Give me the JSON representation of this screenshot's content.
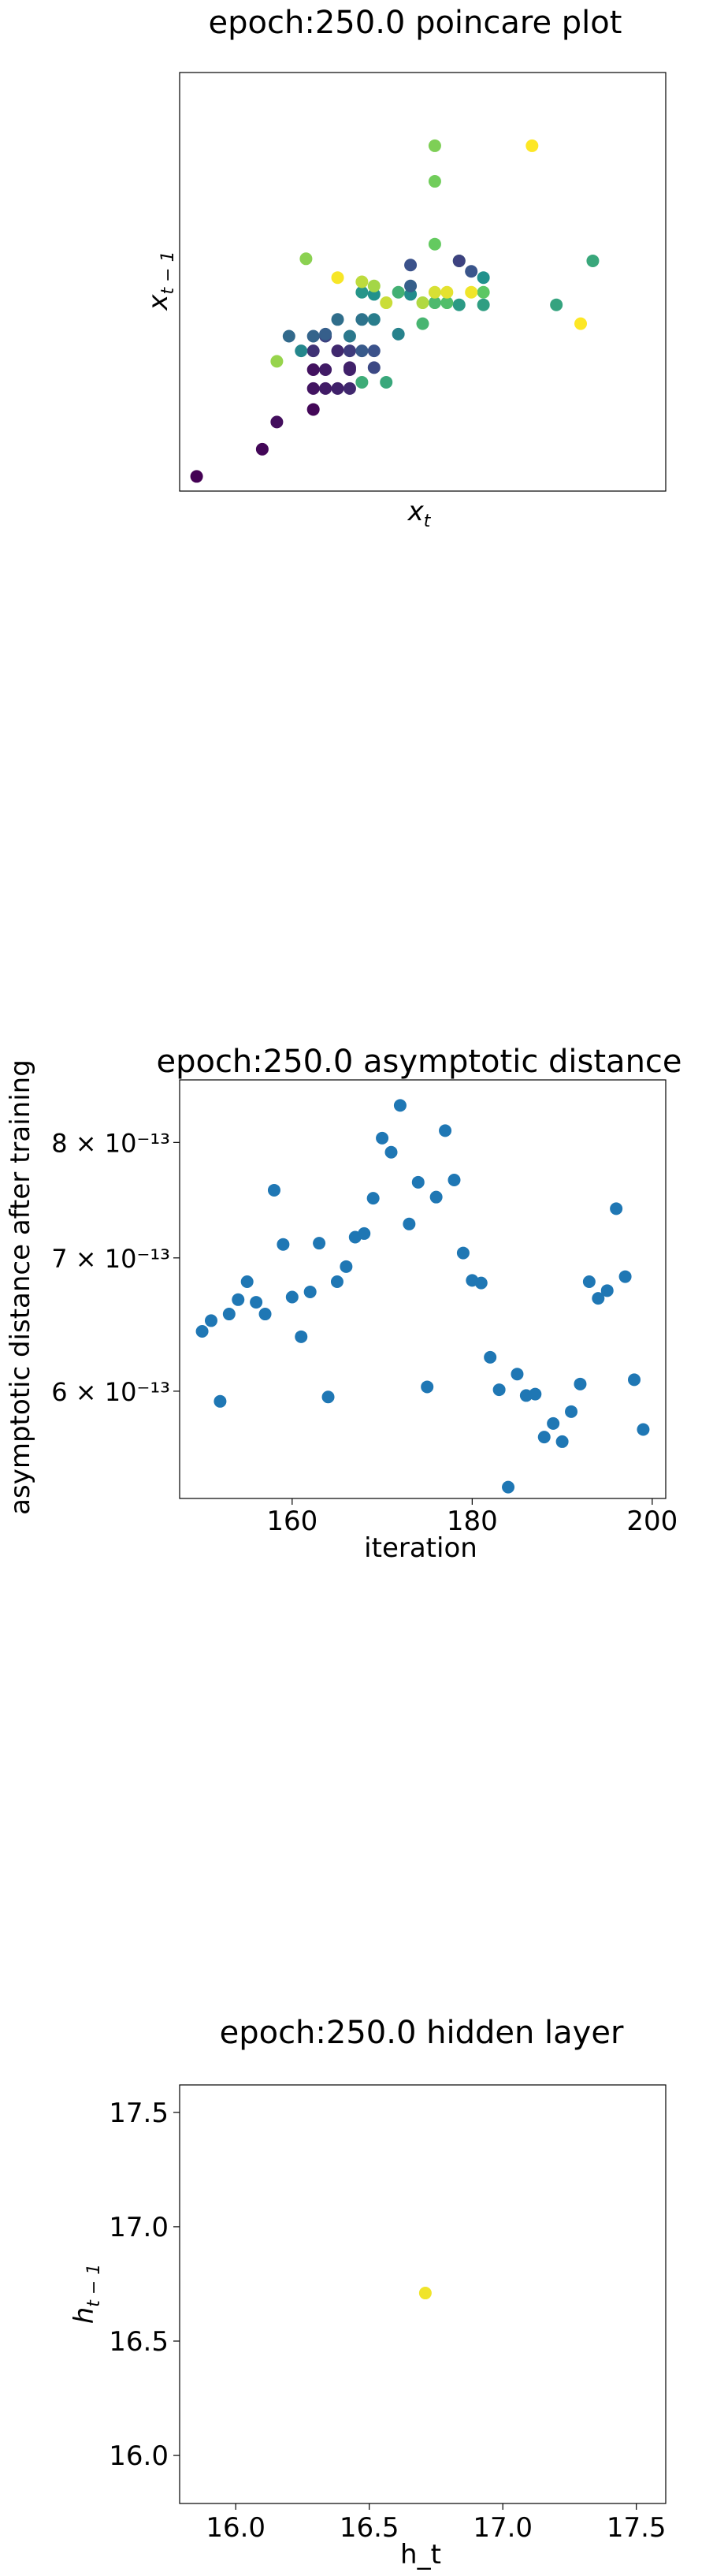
{
  "chart_data": [
    {
      "type": "scatter",
      "title": "epoch:250.0 poincare plot",
      "xlabel": "x_t",
      "ylabel": "x_{t-1}",
      "axis_ticks": "hidden",
      "xlim": [
        -1.0,
        1.0
      ],
      "ylim": [
        -1.0,
        1.0
      ],
      "colormap": "viridis",
      "points": [
        {
          "x": -0.93,
          "y": -0.93,
          "c": 0.0
        },
        {
          "x": -0.66,
          "y": -0.8,
          "c": 0.02
        },
        {
          "x": -0.6,
          "y": -0.67,
          "c": 0.04
        },
        {
          "x": -0.45,
          "y": -0.51,
          "c": 0.06
        },
        {
          "x": -0.4,
          "y": -0.51,
          "c": 0.08
        },
        {
          "x": -0.35,
          "y": -0.51,
          "c": 0.1
        },
        {
          "x": -0.3,
          "y": -0.51,
          "c": 0.12
        },
        {
          "x": -0.45,
          "y": -0.61,
          "c": 0.02
        },
        {
          "x": -0.45,
          "y": -0.42,
          "c": 0.05
        },
        {
          "x": -0.4,
          "y": -0.42,
          "c": 0.08
        },
        {
          "x": -0.3,
          "y": -0.42,
          "c": 0.1
        },
        {
          "x": -0.35,
          "y": -0.33,
          "c": 0.12
        },
        {
          "x": -0.45,
          "y": -0.33,
          "c": 0.15
        },
        {
          "x": -0.3,
          "y": -0.33,
          "c": 0.18
        },
        {
          "x": -0.4,
          "y": -0.26,
          "c": 0.2
        },
        {
          "x": -0.2,
          "y": -0.41,
          "c": 0.22
        },
        {
          "x": -0.2,
          "y": -0.33,
          "c": 0.25
        },
        {
          "x": -0.25,
          "y": -0.33,
          "c": 0.28
        },
        {
          "x": -0.4,
          "y": -0.25,
          "c": 0.3
        },
        {
          "x": -0.45,
          "y": -0.26,
          "c": 0.32
        },
        {
          "x": -0.55,
          "y": -0.26,
          "c": 0.34
        },
        {
          "x": -0.35,
          "y": -0.18,
          "c": 0.36
        },
        {
          "x": -0.25,
          "y": -0.18,
          "c": 0.38
        },
        {
          "x": -0.3,
          "y": -0.26,
          "c": 0.4
        },
        {
          "x": -0.2,
          "y": -0.18,
          "c": 0.42
        },
        {
          "x": -0.1,
          "y": -0.25,
          "c": 0.44
        },
        {
          "x": -0.5,
          "y": -0.33,
          "c": 0.46
        },
        {
          "x": -0.05,
          "y": -0.06,
          "c": 0.48
        },
        {
          "x": -0.2,
          "y": -0.06,
          "c": 0.5
        },
        {
          "x": -0.25,
          "y": -0.05,
          "c": 0.52
        },
        {
          "x": 0.15,
          "y": -0.11,
          "c": 0.54
        },
        {
          "x": 0.25,
          "y": -0.11,
          "c": 0.56
        },
        {
          "x": 0.55,
          "y": -0.11,
          "c": 0.58
        },
        {
          "x": 0.7,
          "y": 0.1,
          "c": 0.6
        },
        {
          "x": -0.25,
          "y": -0.48,
          "c": 0.62
        },
        {
          "x": -0.1,
          "y": -0.05,
          "c": 0.64
        },
        {
          "x": 0.0,
          "y": -0.2,
          "c": 0.66
        },
        {
          "x": 0.05,
          "y": -0.1,
          "c": 0.68
        },
        {
          "x": 0.1,
          "y": -0.1,
          "c": 0.7
        },
        {
          "x": 0.15,
          "y": 0.1,
          "c": 0.72
        },
        {
          "x": 0.25,
          "y": -0.05,
          "c": 0.74
        },
        {
          "x": 0.05,
          "y": 0.18,
          "c": 0.76
        },
        {
          "x": 0.05,
          "y": 0.48,
          "c": 0.78
        },
        {
          "x": 0.05,
          "y": 0.65,
          "c": 0.8
        },
        {
          "x": -0.48,
          "y": 0.11,
          "c": 0.82
        },
        {
          "x": -0.6,
          "y": -0.38,
          "c": 0.84
        },
        {
          "x": -0.2,
          "y": -0.02,
          "c": 0.86
        },
        {
          "x": 0.0,
          "y": -0.1,
          "c": 0.88
        },
        {
          "x": -0.25,
          "y": 0.0,
          "c": 0.9
        },
        {
          "x": -0.15,
          "y": -0.1,
          "c": 0.92
        },
        {
          "x": 0.05,
          "y": -0.05,
          "c": 0.94
        },
        {
          "x": -0.15,
          "y": -0.48,
          "c": 0.6
        },
        {
          "x": 0.25,
          "y": 0.02,
          "c": 0.5
        },
        {
          "x": 0.1,
          "y": -0.05,
          "c": 0.96
        },
        {
          "x": 0.2,
          "y": -0.05,
          "c": 0.98
        },
        {
          "x": -0.35,
          "y": 0.02,
          "c": 0.99
        },
        {
          "x": 0.45,
          "y": 0.65,
          "c": 1.0
        },
        {
          "x": 0.65,
          "y": -0.2,
          "c": 1.0
        },
        {
          "x": -0.3,
          "y": -0.41,
          "c": 0.1
        },
        {
          "x": -0.05,
          "y": -0.02,
          "c": 0.3
        },
        {
          "x": 0.2,
          "y": 0.05,
          "c": 0.26
        },
        {
          "x": 0.15,
          "y": 0.1,
          "c": 0.2
        },
        {
          "x": -0.05,
          "y": 0.08,
          "c": 0.25
        }
      ]
    },
    {
      "type": "scatter",
      "title": "epoch:250.0 asymptotic distance",
      "xlabel": "iteration",
      "ylabel": "asymptotic distance after training",
      "yscale": "log",
      "xlim": [
        147.5,
        201.5
      ],
      "ylim": [
        5.3e-13,
        8.6e-13
      ],
      "x_ticks": [
        "160",
        "180",
        "200"
      ],
      "y_ticks": [
        "6 × 10⁻¹³",
        "7 × 10⁻¹³",
        "8 × 10⁻¹³"
      ],
      "color": "#1f77b4",
      "x": [
        150,
        151,
        152,
        153,
        154,
        155,
        156,
        157,
        158,
        159,
        160,
        161,
        162,
        163,
        164,
        165,
        166,
        167,
        168,
        169,
        170,
        171,
        172,
        173,
        174,
        175,
        176,
        177,
        178,
        179,
        180,
        181,
        182,
        183,
        184,
        185,
        186,
        187,
        188,
        189,
        190,
        191,
        192,
        193,
        194,
        195,
        196,
        197,
        198,
        199
      ],
      "y": [
        6.43e-13,
        6.51e-13,
        5.93e-13,
        6.56e-13,
        6.67e-13,
        6.81e-13,
        6.65e-13,
        6.56e-13,
        7.57e-13,
        7.11e-13,
        6.69e-13,
        6.39e-13,
        6.73e-13,
        7.12e-13,
        5.96e-13,
        6.81e-13,
        6.93e-13,
        7.17e-13,
        7.2e-13,
        7.5e-13,
        8.04e-13,
        7.91e-13,
        8.35e-13,
        7.28e-13,
        7.64e-13,
        6.03e-13,
        7.51e-13,
        8.11e-13,
        7.66e-13,
        7.04e-13,
        6.82e-13,
        6.8e-13,
        6.24e-13,
        6.01e-13,
        5.37e-13,
        6.12e-13,
        5.97e-13,
        5.98e-13,
        5.69e-13,
        5.78e-13,
        5.66e-13,
        5.86e-13,
        6.05e-13,
        6.81e-13,
        6.68e-13,
        6.74e-13,
        7.41e-13,
        6.85e-13,
        6.08e-13,
        5.74e-13
      ]
    },
    {
      "type": "scatter",
      "title": "epoch:250.0 hidden layer",
      "xlabel": "h_t",
      "ylabel": "h_{t-1}",
      "xlim": [
        15.79,
        17.61
      ],
      "ylim": [
        15.79,
        17.62
      ],
      "x_ticks": [
        "16.0",
        "16.5",
        "17.0",
        "17.5"
      ],
      "y_ticks": [
        "16.0",
        "16.5",
        "17.0",
        "17.5"
      ],
      "color": "#f0e42a",
      "x": [
        16.71
      ],
      "y": [
        16.71
      ]
    }
  ]
}
